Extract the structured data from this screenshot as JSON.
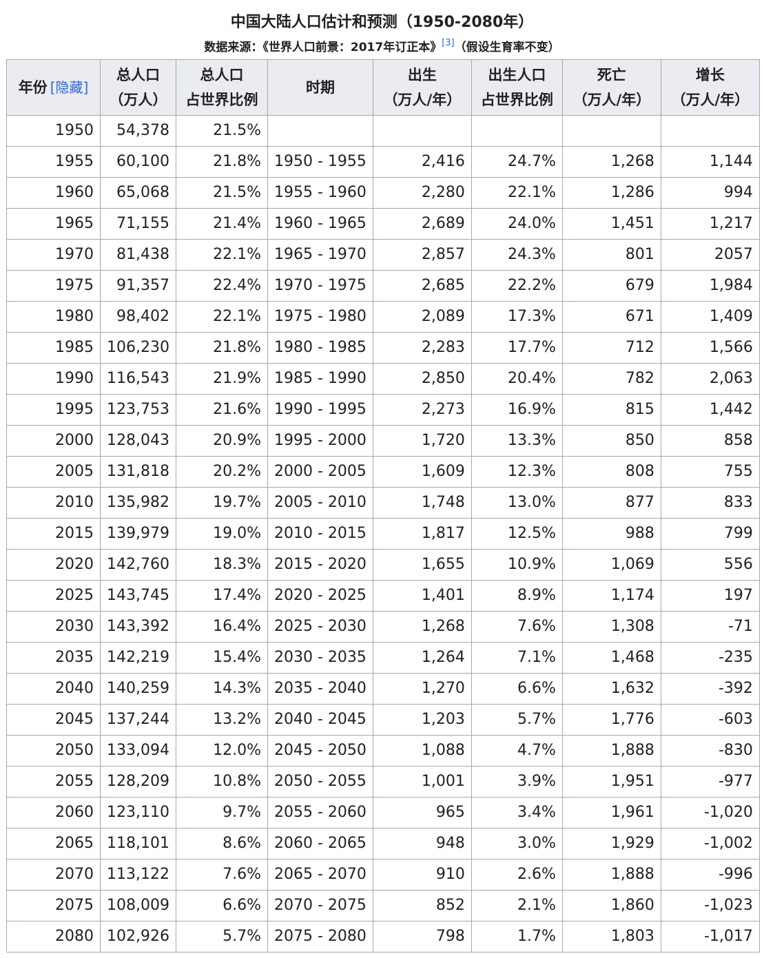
{
  "caption": {
    "title": "中国大陆人口估计和预测（1950-2080年）",
    "source_prefix": "数据来源：《世界人口前景：2017年订正本》",
    "ref": "[3]",
    "source_suffix": "（假设生育率不变）"
  },
  "table": {
    "headers": {
      "year": "年份",
      "toggle_open": "[",
      "toggle_label": "隐藏",
      "toggle_close": "]",
      "total_l1": "总人口",
      "total_l2": "（万人）",
      "share_l1": "总人口",
      "share_l2": "占世界比例",
      "period": "时期",
      "births_l1": "出生",
      "births_l2": "（万人/年）",
      "birthshare_l1": "出生人口",
      "birthshare_l2": "占世界比例",
      "deaths_l1": "死亡",
      "deaths_l2": "（万人/年）",
      "growth_l1": "增长",
      "growth_l2": "（万人/年）"
    },
    "rows": [
      [
        "1950",
        "54,378",
        "21.5%",
        "",
        "",
        "",
        "",
        ""
      ],
      [
        "1955",
        "60,100",
        "21.8%",
        "1950 - 1955",
        "2,416",
        "24.7%",
        "1,268",
        "1,144"
      ],
      [
        "1960",
        "65,068",
        "21.5%",
        "1955 - 1960",
        "2,280",
        "22.1%",
        "1,286",
        "994"
      ],
      [
        "1965",
        "71,155",
        "21.4%",
        "1960 - 1965",
        "2,689",
        "24.0%",
        "1,451",
        "1,217"
      ],
      [
        "1970",
        "81,438",
        "22.1%",
        "1965 - 1970",
        "2,857",
        "24.3%",
        "801",
        "2057"
      ],
      [
        "1975",
        "91,357",
        "22.4%",
        "1970 - 1975",
        "2,685",
        "22.2%",
        "679",
        "1,984"
      ],
      [
        "1980",
        "98,402",
        "22.1%",
        "1975 - 1980",
        "2,089",
        "17.3%",
        "671",
        "1,409"
      ],
      [
        "1985",
        "106,230",
        "21.8%",
        "1980 - 1985",
        "2,283",
        "17.7%",
        "712",
        "1,566"
      ],
      [
        "1990",
        "116,543",
        "21.9%",
        "1985 - 1990",
        "2,850",
        "20.4%",
        "782",
        "2,063"
      ],
      [
        "1995",
        "123,753",
        "21.6%",
        "1990 - 1995",
        "2,273",
        "16.9%",
        "815",
        "1,442"
      ],
      [
        "2000",
        "128,043",
        "20.9%",
        "1995 - 2000",
        "1,720",
        "13.3%",
        "850",
        "858"
      ],
      [
        "2005",
        "131,818",
        "20.2%",
        "2000 - 2005",
        "1,609",
        "12.3%",
        "808",
        "755"
      ],
      [
        "2010",
        "135,982",
        "19.7%",
        "2005 - 2010",
        "1,748",
        "13.0%",
        "877",
        "833"
      ],
      [
        "2015",
        "139,979",
        "19.0%",
        "2010 - 2015",
        "1,817",
        "12.5%",
        "988",
        "799"
      ],
      [
        "2020",
        "142,760",
        "18.3%",
        "2015 - 2020",
        "1,655",
        "10.9%",
        "1,069",
        "556"
      ],
      [
        "2025",
        "143,745",
        "17.4%",
        "2020 - 2025",
        "1,401",
        "8.9%",
        "1,174",
        "197"
      ],
      [
        "2030",
        "143,392",
        "16.4%",
        "2025 - 2030",
        "1,268",
        "7.6%",
        "1,308",
        "-71"
      ],
      [
        "2035",
        "142,219",
        "15.4%",
        "2030 - 2035",
        "1,264",
        "7.1%",
        "1,468",
        "-235"
      ],
      [
        "2040",
        "140,259",
        "14.3%",
        "2035 - 2040",
        "1,270",
        "6.6%",
        "1,632",
        "-392"
      ],
      [
        "2045",
        "137,244",
        "13.2%",
        "2040 - 2045",
        "1,203",
        "5.7%",
        "1,776",
        "-603"
      ],
      [
        "2050",
        "133,094",
        "12.0%",
        "2045 - 2050",
        "1,088",
        "4.7%",
        "1,888",
        "-830"
      ],
      [
        "2055",
        "128,209",
        "10.8%",
        "2050 - 2055",
        "1,001",
        "3.9%",
        "1,951",
        "-977"
      ],
      [
        "2060",
        "123,110",
        "9.7%",
        "2055 - 2060",
        "965",
        "3.4%",
        "1,961",
        "-1,020"
      ],
      [
        "2065",
        "118,101",
        "8.6%",
        "2060 - 2065",
        "948",
        "3.0%",
        "1,929",
        "-1,002"
      ],
      [
        "2070",
        "113,122",
        "7.6%",
        "2065 - 2070",
        "910",
        "2.6%",
        "1,888",
        "-996"
      ],
      [
        "2075",
        "108,009",
        "6.6%",
        "2070 - 2075",
        "852",
        "2.1%",
        "1,860",
        "-1,023"
      ],
      [
        "2080",
        "102,926",
        "5.7%",
        "2075 - 2080",
        "798",
        "1.7%",
        "1,803",
        "-1,017"
      ]
    ]
  }
}
